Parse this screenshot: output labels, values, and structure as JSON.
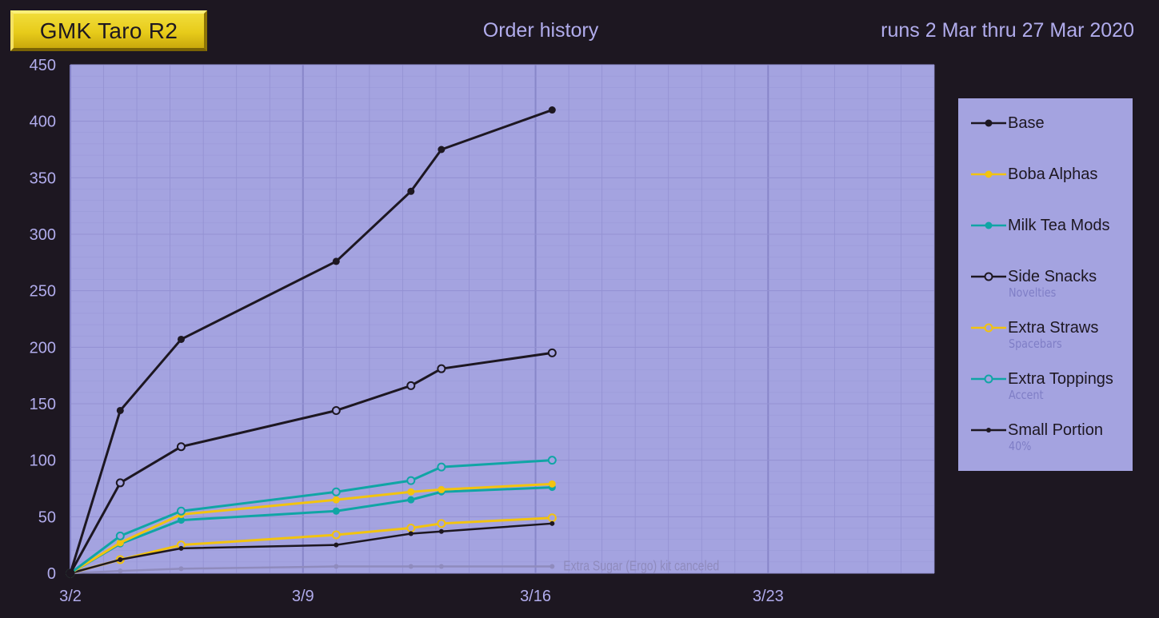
{
  "header": {
    "badge": "GMK Taro R2",
    "title": "Order history",
    "run_dates": "runs 2 Mar thru 27 Mar 2020"
  },
  "colors": {
    "background": "#1d1721",
    "plot_area": "#a4a3e0",
    "grid": "#9391d2",
    "axis_text": "#b1acec",
    "black_series": "#1d1721",
    "gold_series": "#f2c30f",
    "teal_series": "#10a5a5",
    "gray_series": "#8f8bbd"
  },
  "chart_data": {
    "type": "line",
    "title": "Order history",
    "xlabel": "",
    "ylabel": "",
    "x_unit": "date",
    "xlim": [
      "2020-03-02",
      "2020-03-28"
    ],
    "ylim": [
      0,
      450
    ],
    "yticks": [
      0,
      50,
      100,
      150,
      200,
      250,
      300,
      350,
      400,
      450
    ],
    "xticks": [
      {
        "date": "2020-03-02",
        "label": "3/2"
      },
      {
        "date": "2020-03-09",
        "label": "3/9"
      },
      {
        "date": "2020-03-16",
        "label": "3/16"
      },
      {
        "date": "2020-03-23",
        "label": "3/23"
      }
    ],
    "grid": true,
    "legend_position": "right",
    "series": [
      {
        "name": "Base",
        "sublabel": "",
        "color": "#1d1721",
        "marker": "filled",
        "x": [
          "2020-03-02 00:00",
          "2020-03-03 12:00",
          "2020-03-05 08:00",
          "2020-03-10 00:00",
          "2020-03-12 06:00",
          "2020-03-13 04:00",
          "2020-03-16 12:00"
        ],
        "y": [
          0,
          144,
          207,
          276,
          338,
          375,
          410
        ]
      },
      {
        "name": "Boba Alphas",
        "sublabel": "",
        "color": "#f2c30f",
        "marker": "filled",
        "x": [
          "2020-03-02 00:00",
          "2020-03-03 12:00",
          "2020-03-05 08:00",
          "2020-03-10 00:00",
          "2020-03-12 06:00",
          "2020-03-13 04:00",
          "2020-03-16 12:00"
        ],
        "y": [
          0,
          27,
          52,
          65,
          72,
          74,
          79
        ]
      },
      {
        "name": "Milk Tea Mods",
        "sublabel": "",
        "color": "#10a5a5",
        "marker": "filled",
        "x": [
          "2020-03-02 00:00",
          "2020-03-03 12:00",
          "2020-03-05 08:00",
          "2020-03-10 00:00",
          "2020-03-12 06:00",
          "2020-03-13 04:00",
          "2020-03-16 12:00"
        ],
        "y": [
          0,
          26,
          47,
          55,
          65,
          72,
          76
        ]
      },
      {
        "name": "Side Snacks",
        "sublabel": "Novelties",
        "color": "#1d1721",
        "marker": "open",
        "x": [
          "2020-03-02 00:00",
          "2020-03-03 12:00",
          "2020-03-05 08:00",
          "2020-03-10 00:00",
          "2020-03-12 06:00",
          "2020-03-13 04:00",
          "2020-03-16 12:00"
        ],
        "y": [
          0,
          80,
          112,
          144,
          166,
          181,
          195
        ]
      },
      {
        "name": "Extra Straws",
        "sublabel": "Spacebars",
        "color": "#f2c30f",
        "marker": "open",
        "x": [
          "2020-03-02 00:00",
          "2020-03-03 12:00",
          "2020-03-05 08:00",
          "2020-03-10 00:00",
          "2020-03-12 06:00",
          "2020-03-13 04:00",
          "2020-03-16 12:00"
        ],
        "y": [
          0,
          12,
          25,
          34,
          40,
          44,
          49
        ]
      },
      {
        "name": "Extra Toppings",
        "sublabel": "Accent",
        "color": "#10a5a5",
        "marker": "open",
        "x": [
          "2020-03-02 00:00",
          "2020-03-03 12:00",
          "2020-03-05 08:00",
          "2020-03-10 00:00",
          "2020-03-12 06:00",
          "2020-03-13 04:00",
          "2020-03-16 12:00"
        ],
        "y": [
          0,
          33,
          55,
          72,
          82,
          94,
          100
        ]
      },
      {
        "name": "Small Portion",
        "sublabel": "40%",
        "color": "#1d1721",
        "marker": "small",
        "x": [
          "2020-03-02 00:00",
          "2020-03-03 12:00",
          "2020-03-05 08:00",
          "2020-03-10 00:00",
          "2020-03-12 06:00",
          "2020-03-13 04:00",
          "2020-03-16 12:00"
        ],
        "y": [
          0,
          12,
          22,
          25,
          35,
          37,
          44
        ]
      },
      {
        "name": "",
        "sublabel": "",
        "color": "#8f8bbd",
        "marker": "small",
        "x": [
          "2020-03-02 00:00",
          "2020-03-03 12:00",
          "2020-03-05 08:00",
          "2020-03-10 00:00",
          "2020-03-12 06:00",
          "2020-03-13 04:00",
          "2020-03-16 12:00"
        ],
        "y": [
          0,
          2,
          4,
          6,
          6,
          6,
          6
        ]
      }
    ],
    "annotations": [
      {
        "text": "Extra Sugar (Ergo) kit canceled",
        "x": "2020-03-16 12:00",
        "y": 6
      }
    ]
  }
}
